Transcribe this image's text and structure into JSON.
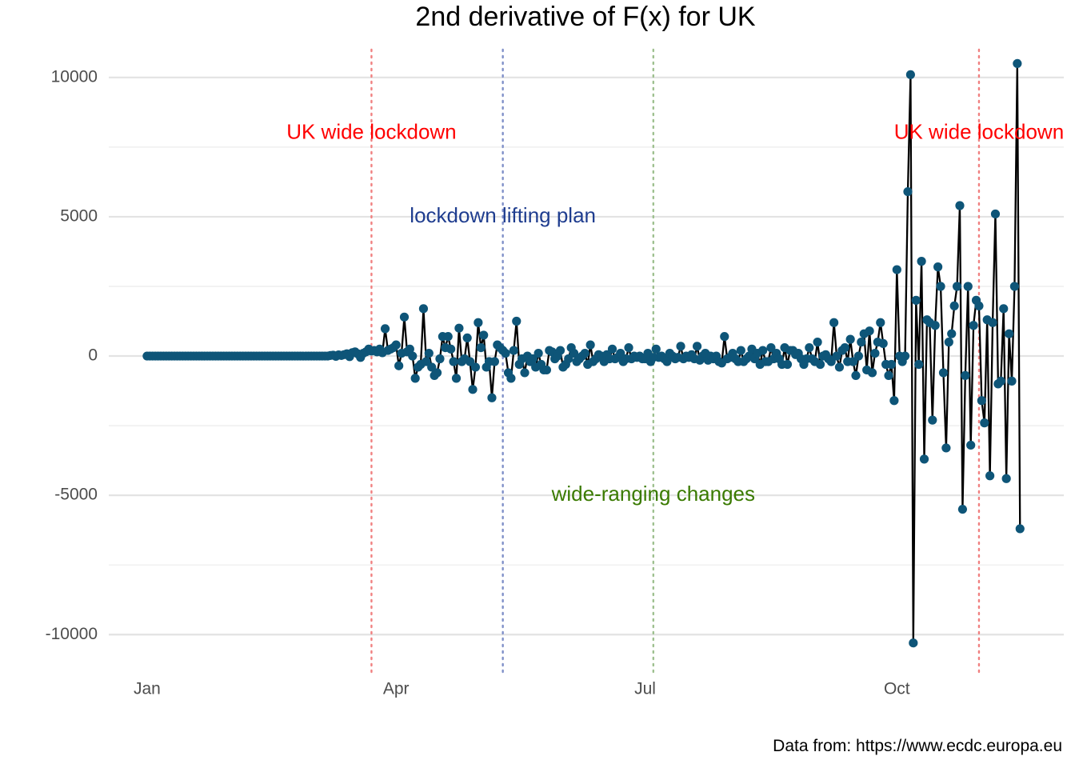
{
  "chart_data": {
    "type": "line",
    "title": "2nd derivative of F(x) for UK",
    "caption": "Data from: https://www.ecdc.europa.eu",
    "xlabel": "",
    "ylabel": "",
    "x_ticks": [
      {
        "date": "2020-01-01",
        "label": "Jan"
      },
      {
        "date": "2020-04-01",
        "label": "Apr"
      },
      {
        "date": "2020-07-01",
        "label": "Jul"
      },
      {
        "date": "2020-10-01",
        "label": "Oct"
      }
    ],
    "y_ticks": [
      10000,
      5000,
      0,
      -5000,
      -10000
    ],
    "y_tick_labels": [
      "10000",
      "5000",
      "0",
      "-5000",
      "-10000"
    ],
    "ylim": [
      -11400,
      11000
    ],
    "xlim": [
      "2019-12-18",
      "2020-12-01"
    ],
    "grid": true,
    "legend": "none",
    "series_color_line": "#000000",
    "series_color_points": "#0e5578",
    "events": [
      {
        "date": "2020-03-23",
        "label": "UK wide lockdown",
        "color": "#ff0000",
        "line_color": "#f08080",
        "label_y": 8000
      },
      {
        "date": "2020-05-10",
        "label": "lockdown lifting plan",
        "color": "#1f3d8f",
        "line_color": "#7f8fc8",
        "label_y": 5000
      },
      {
        "date": "2020-07-04",
        "label": "wide-ranging changes",
        "color": "#3a7a00",
        "line_color": "#9ec08f",
        "label_y": -5000
      },
      {
        "date": "2020-10-31",
        "label": "UK wide lockdown",
        "color": "#ff0000",
        "line_color": "#f08080",
        "label_y": 8000
      }
    ],
    "series": [
      {
        "start_date": "2020-01-01",
        "values": [
          0,
          0,
          0,
          0,
          0,
          0,
          0,
          0,
          0,
          0,
          0,
          0,
          0,
          0,
          0,
          0,
          0,
          0,
          0,
          0,
          0,
          0,
          0,
          0,
          0,
          0,
          0,
          0,
          0,
          0,
          0,
          0,
          0,
          0,
          0,
          0,
          0,
          0,
          0,
          0,
          0,
          0,
          0,
          0,
          0,
          0,
          0,
          0,
          0,
          0,
          0,
          0,
          0,
          0,
          0,
          0,
          0,
          0,
          0,
          0,
          0,
          0,
          0,
          0,
          0,
          0,
          0,
          20,
          30,
          -10,
          40,
          20,
          50,
          80,
          -20,
          120,
          150,
          80,
          -50,
          100,
          150,
          250,
          180,
          200,
          150,
          250,
          120,
          980,
          200,
          250,
          300,
          400,
          -350,
          100,
          1400,
          150,
          250,
          0,
          -800,
          -400,
          -300,
          1700,
          -200,
          100,
          -400,
          -700,
          -600,
          -100,
          700,
          300,
          700,
          250,
          -200,
          -800,
          1000,
          -200,
          -100,
          650,
          -200,
          -1200,
          -400,
          1200,
          300,
          750,
          -400,
          -200,
          -1500,
          -200,
          400,
          300,
          200,
          100,
          -600,
          -800,
          200,
          1250,
          -300,
          -100,
          -600,
          0,
          -200,
          -100,
          -400,
          100,
          -300,
          -500,
          -500,
          200,
          150,
          -100,
          0,
          200,
          -400,
          -300,
          -100,
          300,
          100,
          -200,
          -100,
          0,
          100,
          -300,
          400,
          -200,
          -100,
          50,
          0,
          -200,
          50,
          -100,
          250,
          -100,
          -50,
          100,
          -200,
          -100,
          300,
          -100,
          0,
          -50,
          0,
          -100,
          -100,
          100,
          -200,
          -50,
          250,
          -50,
          0,
          -100,
          -200,
          100,
          0,
          -100,
          -50,
          350,
          -100,
          0,
          -50,
          50,
          -100,
          350,
          -150,
          0,
          100,
          -150,
          0,
          -100,
          0,
          -200,
          -250,
          700,
          -100,
          -50,
          100,
          -100,
          -200,
          200,
          -200,
          -100,
          0,
          250,
          -100,
          100,
          -300,
          200,
          -200,
          -200,
          300,
          -100,
          100,
          -100,
          -300,
          300,
          -300,
          200,
          200,
          50,
          100,
          -100,
          -300,
          -100,
          300,
          -100,
          -200,
          500,
          -300,
          0,
          50,
          -100,
          -200,
          1200,
          0,
          -400,
          200,
          300,
          -200,
          600,
          -200,
          -700,
          0,
          500,
          800,
          -500,
          900,
          -600,
          100,
          500,
          1200,
          450,
          -300,
          -700,
          -300,
          -1600,
          3100,
          0,
          -200,
          0,
          5900,
          10100,
          -10300,
          2000,
          -300,
          3400,
          -3700,
          1300,
          1200,
          -2300,
          1100,
          3200,
          2500,
          -600,
          -3300,
          500,
          800,
          1800,
          2500,
          5400,
          -5500,
          -700,
          2500,
          -3200,
          1100,
          2000,
          1800,
          -1600,
          -2400,
          1300,
          -4300,
          1200,
          5100,
          -1000,
          -900,
          1700,
          -4400,
          800,
          -900,
          2500,
          10500,
          -6200
        ]
      }
    ]
  }
}
